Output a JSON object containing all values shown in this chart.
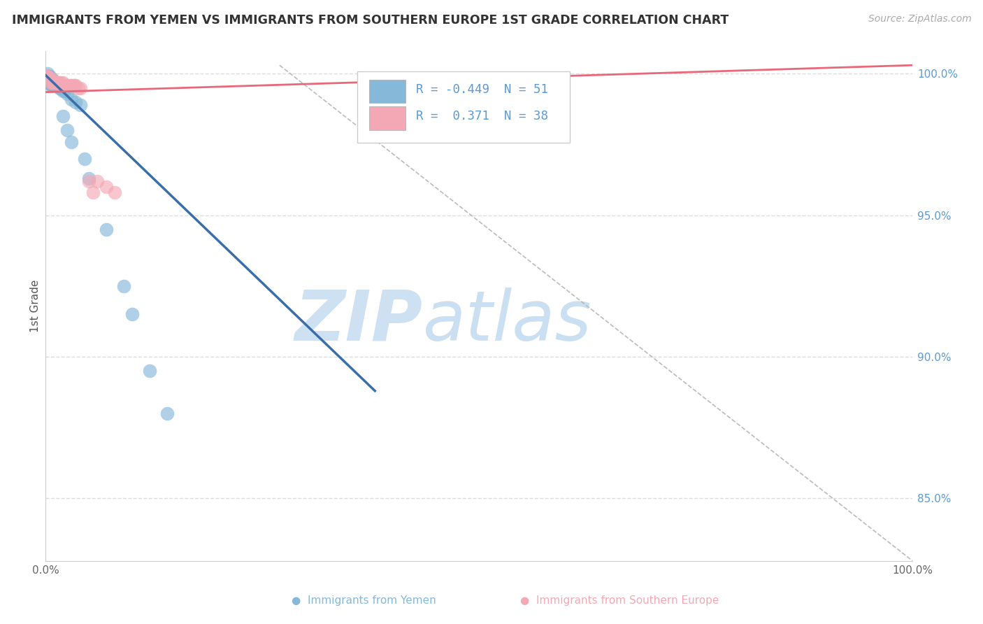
{
  "title": "IMMIGRANTS FROM YEMEN VS IMMIGRANTS FROM SOUTHERN EUROPE 1ST GRADE CORRELATION CHART",
  "source_text": "Source: ZipAtlas.com",
  "ylabel": "1st Grade",
  "right_ytick_labels": [
    "100.0%",
    "95.0%",
    "90.0%",
    "85.0%"
  ],
  "right_ytick_values": [
    1.0,
    0.95,
    0.9,
    0.85
  ],
  "xlim": [
    0.0,
    1.0
  ],
  "ylim": [
    0.828,
    1.008
  ],
  "legend_R1": "-0.449",
  "legend_N1": "51",
  "legend_R2": "0.371",
  "legend_N2": "38",
  "color_blue": "#85B8D9",
  "color_pink": "#F4A8B5",
  "color_blue_line": "#3A6EA8",
  "color_pink_line": "#E8687A",
  "color_diag_line": "#BBBBBB",
  "background_color": "#FFFFFF",
  "grid_color": "#DDDDDD",
  "title_color": "#333333",
  "axis_tick_color": "#5B9BD5",
  "source_color": "#AAAAAA",
  "bottom_label_blue": "Immigrants from Yemen",
  "bottom_label_pink": "Immigrants from Southern Europe",
  "blue_x": [
    0.001,
    0.002,
    0.003,
    0.003,
    0.003,
    0.004,
    0.004,
    0.005,
    0.005,
    0.006,
    0.006,
    0.007,
    0.007,
    0.008,
    0.008,
    0.009,
    0.009,
    0.01,
    0.01,
    0.011,
    0.012,
    0.012,
    0.013,
    0.014,
    0.015,
    0.016,
    0.017,
    0.018,
    0.02,
    0.022,
    0.025,
    0.03,
    0.035,
    0.04,
    0.002,
    0.003,
    0.004,
    0.005,
    0.006,
    0.007,
    0.008,
    0.05,
    0.07,
    0.09,
    0.1,
    0.12,
    0.14,
    0.02,
    0.025,
    0.03,
    0.045
  ],
  "blue_y": [
    0.999,
    1.0,
    0.999,
    0.998,
    0.997,
    0.998,
    0.997,
    0.999,
    0.997,
    0.998,
    0.996,
    0.998,
    0.996,
    0.998,
    0.997,
    0.997,
    0.996,
    0.997,
    0.996,
    0.997,
    0.997,
    0.996,
    0.996,
    0.996,
    0.996,
    0.995,
    0.995,
    0.995,
    0.994,
    0.994,
    0.993,
    0.991,
    0.99,
    0.989,
    0.999,
    0.998,
    0.999,
    0.998,
    0.997,
    0.997,
    0.996,
    0.963,
    0.945,
    0.925,
    0.915,
    0.895,
    0.88,
    0.985,
    0.98,
    0.976,
    0.97
  ],
  "pink_x": [
    0.001,
    0.002,
    0.003,
    0.004,
    0.005,
    0.006,
    0.007,
    0.008,
    0.009,
    0.01,
    0.012,
    0.013,
    0.015,
    0.016,
    0.018,
    0.02,
    0.022,
    0.025,
    0.028,
    0.03,
    0.033,
    0.035,
    0.038,
    0.002,
    0.004,
    0.006,
    0.008,
    0.01,
    0.014,
    0.018,
    0.025,
    0.033,
    0.04,
    0.05,
    0.055,
    0.06,
    0.07,
    0.08
  ],
  "pink_y": [
    0.999,
    0.999,
    0.998,
    0.998,
    0.998,
    0.997,
    0.998,
    0.997,
    0.997,
    0.997,
    0.997,
    0.997,
    0.997,
    0.997,
    0.997,
    0.997,
    0.996,
    0.996,
    0.996,
    0.996,
    0.996,
    0.996,
    0.995,
    0.999,
    0.998,
    0.998,
    0.997,
    0.997,
    0.997,
    0.996,
    0.996,
    0.996,
    0.995,
    0.962,
    0.958,
    0.962,
    0.96,
    0.958
  ],
  "blue_line_x": [
    0.0,
    0.38
  ],
  "blue_line_y": [
    0.9995,
    0.888
  ],
  "pink_line_x": [
    0.0,
    1.0
  ],
  "pink_line_y": [
    0.9935,
    1.003
  ],
  "diag_line_x": [
    0.27,
    1.0
  ],
  "diag_line_y": [
    1.003,
    0.828
  ]
}
